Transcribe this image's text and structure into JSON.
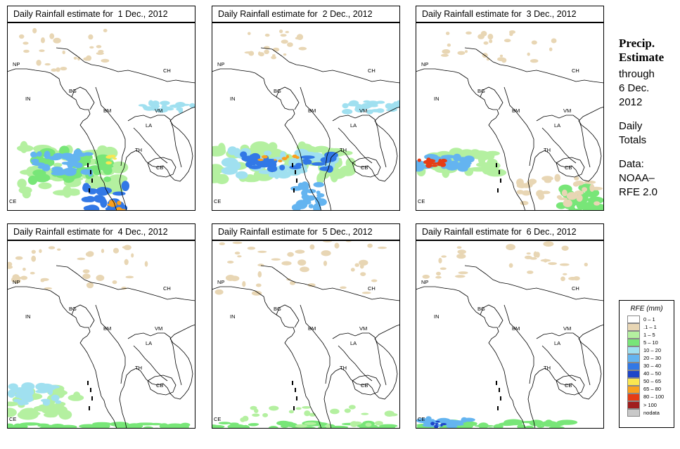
{
  "panels": [
    {
      "title": "Daily Rainfall estimate for  1 Dec., 2012",
      "day": 1
    },
    {
      "title": "Daily Rainfall estimate for  2 Dec., 2012",
      "day": 2
    },
    {
      "title": "Daily Rainfall estimate for  3 Dec., 2012",
      "day": 3
    },
    {
      "title": "Daily Rainfall estimate for  4 Dec., 2012",
      "day": 4
    },
    {
      "title": "Daily Rainfall estimate for  5 Dec., 2012",
      "day": 5
    },
    {
      "title": "Daily Rainfall estimate for  6 Dec., 2012",
      "day": 6
    }
  ],
  "country_labels": [
    "NP",
    "CH",
    "IN",
    "BG",
    "BM",
    "VM",
    "LA",
    "TH",
    "CB",
    "CE"
  ],
  "side": {
    "line1": "Precip.",
    "line2": "Estimate",
    "line3": "through",
    "line4": "6 Dec.",
    "line5": "2012",
    "line6": "Daily",
    "line7": "Totals",
    "line8": "Data:",
    "line9": "NOAA–",
    "line10": "RFE 2.0"
  },
  "legend": {
    "title": "RFE (mm)",
    "items": [
      {
        "label": "0 – 1",
        "color": "#ffffff"
      },
      {
        "label": ".1 – 1",
        "color": "#e8d6b4"
      },
      {
        "label": "1 – 5",
        "color": "#b4f0a0"
      },
      {
        "label": "5 – 10",
        "color": "#78e678"
      },
      {
        "label": "10 – 20",
        "color": "#a0e0f0"
      },
      {
        "label": "20 – 30",
        "color": "#64b4f0"
      },
      {
        "label": "30 – 40",
        "color": "#3278e6"
      },
      {
        "label": "40 – 50",
        "color": "#1e46c8"
      },
      {
        "label": "50 – 65",
        "color": "#fae650"
      },
      {
        "label": "65 – 80",
        "color": "#faa01e"
      },
      {
        "label": "80 – 100",
        "color": "#e63c14"
      },
      {
        "label": "> 100",
        "color": "#a01e1e"
      },
      {
        "label": "nodata",
        "color": "#c8c8c8"
      }
    ]
  }
}
